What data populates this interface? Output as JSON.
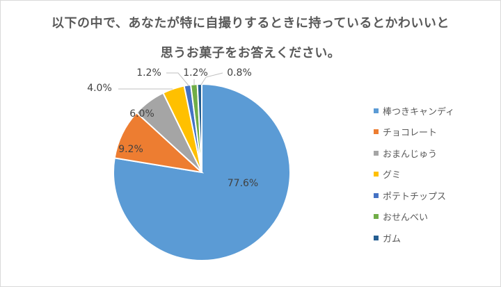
{
  "title": {
    "line1": "以下の中で、あなたが特に自撮りするときに持っているとかわいいと",
    "line2": "思うお菓子をお答えください。"
  },
  "chart_data": {
    "type": "pie",
    "title": "以下の中で、あなたが特に自撮りするときに持っているとかわいいと思うお菓子をお答えください。",
    "categories": [
      "棒つきキャンディ",
      "チョコレート",
      "おまんじゅう",
      "グミ",
      "ポテトチップス",
      "おせんべい",
      "ガム"
    ],
    "values": [
      77.6,
      9.2,
      6.0,
      4.0,
      1.2,
      1.2,
      0.8
    ],
    "labels": [
      "77.6%",
      "9.2%",
      "6.0%",
      "4.0%",
      "1.2%",
      "1.2%",
      "0.8%"
    ],
    "colors": [
      "#5b9bd5",
      "#ed7d31",
      "#a5a5a5",
      "#ffc000",
      "#4472c4",
      "#70ad47",
      "#255e91"
    ],
    "start_angle_deg": 0,
    "direction": "clockwise",
    "legend_position": "right"
  },
  "legend": {
    "items": [
      {
        "label": "棒つきキャンディ",
        "color": "#5b9bd5"
      },
      {
        "label": "チョコレート",
        "color": "#ed7d31"
      },
      {
        "label": "おまんじゅう",
        "color": "#a5a5a5"
      },
      {
        "label": "グミ",
        "color": "#ffc000"
      },
      {
        "label": "ポテトチップス",
        "color": "#4472c4"
      },
      {
        "label": "おせんべい",
        "color": "#70ad47"
      },
      {
        "label": "ガム",
        "color": "#255e91"
      }
    ]
  }
}
